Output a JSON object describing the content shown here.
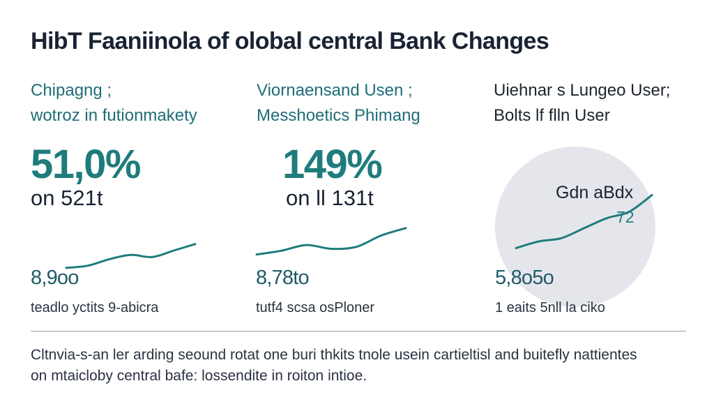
{
  "title": "HibT Faaniinola of olobal central Bank Changes",
  "colors": {
    "accent": "#1f7c7c",
    "dark": "#1a2333",
    "disc": "#e4e6ec",
    "rule": "#9aa3ad"
  },
  "panels": [
    {
      "subtitle_line1": "Chipagng ;",
      "subtitle_line2": "wotroz in futionmakety",
      "kpi": "51,0%",
      "kpi_sub": "on 521t",
      "stat": "8,9oo",
      "caption": "teadlo yctits 9-abicra"
    },
    {
      "subtitle_line1": "Viornaensand Usen ;",
      "subtitle_line2": "Messhoetics Phimang",
      "kpi": "149%",
      "kpi_sub": "on ll 131t",
      "stat": "8,78to",
      "caption": "tutf4 scsa osPloner"
    },
    {
      "subtitle_line1": "Uiehnar s Lungeo User;",
      "subtitle_line2": "Bolts lf flln User",
      "disc_label": "Gdn aBdx",
      "disc_value": "72",
      "stat": "5,8o5o",
      "caption": "1 eaits 5nll la ciko"
    }
  ],
  "footnote_line1": "Cltnvia-s-an ler arding seound rotat one buri thkits tnole usein cartieltisl and buitefly nattientes",
  "footnote_line2": "on mtaicloby central bafe: lossendite in roiton intioe.",
  "chart_data": [
    {
      "type": "line",
      "title": "",
      "xlabel": "",
      "ylabel": "",
      "x": [
        0,
        1,
        2,
        3,
        4,
        5,
        6
      ],
      "ylim": [
        0,
        10
      ],
      "series": [
        {
          "values": [
            1,
            1.5,
            3,
            4,
            3.5,
            5,
            6.5
          ]
        }
      ]
    },
    {
      "type": "line",
      "title": "",
      "xlabel": "",
      "ylabel": "",
      "x": [
        0,
        1,
        2,
        3,
        4,
        5,
        6
      ],
      "ylim": [
        0,
        10
      ],
      "series": [
        {
          "values": [
            1,
            2,
            3.5,
            2.5,
            3,
            6,
            8
          ]
        }
      ]
    },
    {
      "type": "line",
      "title": "",
      "xlabel": "",
      "ylabel": "",
      "x": [
        0,
        1,
        2,
        3,
        4,
        5,
        6
      ],
      "ylim": [
        0,
        10
      ],
      "series": [
        {
          "values": [
            1,
            2,
            2.5,
            4,
            5.5,
            6.5,
            9
          ]
        }
      ]
    }
  ]
}
